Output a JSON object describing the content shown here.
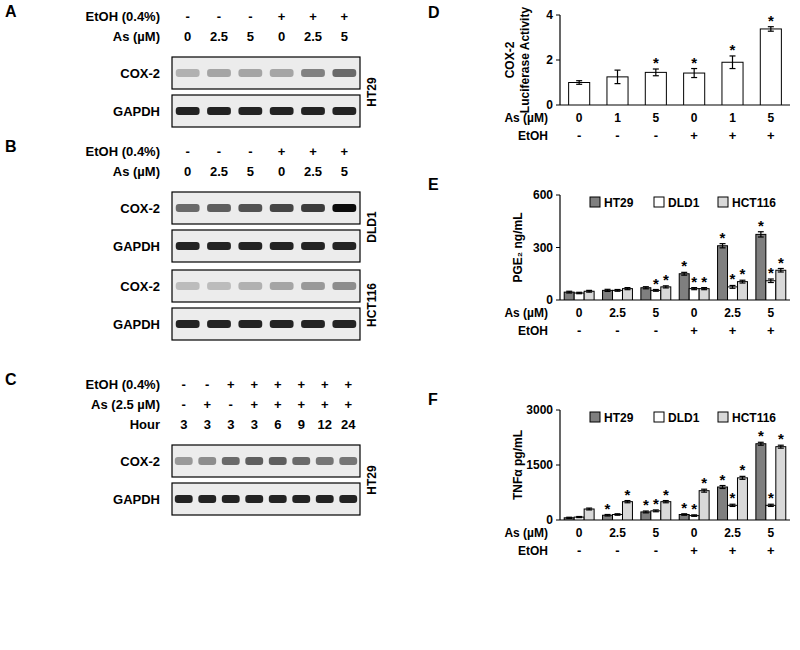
{
  "chart_data": [
    {
      "type": "bar",
      "panel": "D",
      "ylabel": "COX-2 Luciferase Activity",
      "categories": [
        "0",
        "1",
        "5",
        "0",
        "1",
        "5"
      ],
      "xlabel": "As (µM)",
      "groups": {
        "label": "EtOH",
        "values": [
          "-",
          "-",
          "-",
          "+",
          "+",
          "+"
        ]
      },
      "values": [
        1.0,
        1.25,
        1.45,
        1.42,
        1.9,
        3.38
      ],
      "errors": [
        0.08,
        0.3,
        0.15,
        0.2,
        0.28,
        0.1
      ],
      "significant": [
        false,
        false,
        true,
        true,
        true,
        true
      ],
      "significance_label": "*",
      "color": "#ffffff",
      "ylim": [
        0,
        4
      ],
      "yticks": [
        0,
        2,
        4
      ],
      "grid": false
    },
    {
      "type": "bar",
      "panel": "E",
      "ylabel": "PGE₂ ng/mL",
      "categories": [
        "0",
        "2.5",
        "5",
        "0",
        "2.5",
        "5"
      ],
      "xlabel": "As (µM)",
      "groups": {
        "label": "EtOH",
        "values": [
          "-",
          "-",
          "-",
          "+",
          "+",
          "+"
        ]
      },
      "series": [
        {
          "name": "HT29",
          "color": "#7f7f7f",
          "values": [
            45,
            55,
            70,
            150,
            310,
            375
          ],
          "errors": [
            5,
            6,
            6,
            8,
            12,
            15
          ],
          "significant": [
            false,
            false,
            false,
            true,
            true,
            true
          ]
        },
        {
          "name": "DLD1",
          "color": "#ffffff",
          "values": [
            40,
            55,
            55,
            65,
            75,
            110
          ],
          "errors": [
            4,
            5,
            5,
            6,
            8,
            10
          ],
          "significant": [
            false,
            false,
            true,
            true,
            true,
            true
          ]
        },
        {
          "name": "HCT116",
          "color": "#d9d9d9",
          "values": [
            50,
            65,
            75,
            65,
            105,
            170
          ],
          "errors": [
            5,
            6,
            6,
            6,
            8,
            10
          ],
          "significant": [
            false,
            false,
            true,
            true,
            true,
            true
          ]
        }
      ],
      "significance_label": "*",
      "ylim": [
        0,
        600
      ],
      "yticks": [
        0,
        300,
        600
      ],
      "grid": false,
      "legend": "top"
    },
    {
      "type": "bar",
      "panel": "F",
      "ylabel": "TNFα pg/mL",
      "categories": [
        "0",
        "2.5",
        "5",
        "0",
        "2.5",
        "5"
      ],
      "xlabel": "As (µM)",
      "groups": {
        "label": "EtOH",
        "values": [
          "-",
          "-",
          "-",
          "+",
          "+",
          "+"
        ]
      },
      "series": [
        {
          "name": "HT29",
          "color": "#7f7f7f",
          "values": [
            60,
            130,
            220,
            150,
            900,
            2080
          ],
          "errors": [
            15,
            20,
            25,
            20,
            40,
            40
          ],
          "significant": [
            false,
            true,
            true,
            true,
            true,
            true
          ]
        },
        {
          "name": "DLD1",
          "color": "#ffffff",
          "values": [
            80,
            150,
            250,
            120,
            400,
            400
          ],
          "errors": [
            15,
            20,
            25,
            20,
            30,
            30
          ],
          "significant": [
            false,
            false,
            true,
            true,
            true,
            true
          ]
        },
        {
          "name": "HCT116",
          "color": "#d9d9d9",
          "values": [
            300,
            500,
            500,
            800,
            1150,
            2000
          ],
          "errors": [
            25,
            30,
            30,
            40,
            40,
            40
          ],
          "significant": [
            false,
            true,
            true,
            true,
            true,
            true
          ]
        }
      ],
      "significance_label": "*",
      "ylim": [
        0,
        3000
      ],
      "yticks": [
        0,
        1500,
        3000
      ],
      "grid": false,
      "legend": "top"
    }
  ],
  "blots": [
    {
      "panel": "A",
      "conditions": [
        {
          "label": "EtOH (0.4%)",
          "values": [
            "-",
            "-",
            "-",
            "+",
            "+",
            "+"
          ]
        },
        {
          "label": "As (µM)",
          "values": [
            "0",
            "2.5",
            "5",
            "0",
            "2.5",
            "5"
          ]
        }
      ],
      "cell_lines": [
        {
          "name": "HT29",
          "rows": [
            {
              "label": "COX-2",
              "intensity": [
                0.25,
                0.3,
                0.3,
                0.3,
                0.45,
                0.55
              ]
            },
            {
              "label": "GAPDH",
              "intensity": [
                0.85,
                0.85,
                0.85,
                0.85,
                0.85,
                0.85
              ]
            }
          ]
        }
      ]
    },
    {
      "panel": "B",
      "conditions": [
        {
          "label": "EtOH (0.4%)",
          "values": [
            "-",
            "-",
            "-",
            "+",
            "+",
            "+"
          ]
        },
        {
          "label": "As (µM)",
          "values": [
            "0",
            "2.5",
            "5",
            "0",
            "2.5",
            "5"
          ]
        }
      ],
      "cell_lines": [
        {
          "name": "DLD1",
          "rows": [
            {
              "label": "COX-2",
              "intensity": [
                0.55,
                0.6,
                0.65,
                0.7,
                0.75,
                0.95
              ]
            },
            {
              "label": "GAPDH",
              "intensity": [
                0.85,
                0.85,
                0.85,
                0.85,
                0.85,
                0.85
              ]
            }
          ]
        },
        {
          "name": "HCT116",
          "rows": [
            {
              "label": "COX-2",
              "intensity": [
                0.2,
                0.2,
                0.25,
                0.3,
                0.35,
                0.4
              ]
            },
            {
              "label": "GAPDH",
              "intensity": [
                0.85,
                0.85,
                0.85,
                0.85,
                0.85,
                0.85
              ]
            }
          ]
        }
      ]
    },
    {
      "panel": "C",
      "conditions": [
        {
          "label": "EtOH (0.4%)",
          "values": [
            "-",
            "-",
            "+",
            "+",
            "+",
            "+",
            "+",
            "+"
          ]
        },
        {
          "label": "As (2.5 µM)",
          "values": [
            "-",
            "+",
            "-",
            "+",
            "+",
            "+",
            "+",
            "+"
          ]
        },
        {
          "label": "Hour",
          "values": [
            "3",
            "3",
            "3",
            "3",
            "6",
            "9",
            "12",
            "24"
          ]
        }
      ],
      "cell_lines": [
        {
          "name": "HT29",
          "rows": [
            {
              "label": "COX-2",
              "intensity": [
                0.35,
                0.4,
                0.55,
                0.6,
                0.6,
                0.55,
                0.5,
                0.5
              ]
            },
            {
              "label": "GAPDH",
              "intensity": [
                0.85,
                0.85,
                0.85,
                0.85,
                0.85,
                0.85,
                0.85,
                0.85
              ]
            }
          ]
        }
      ]
    }
  ]
}
